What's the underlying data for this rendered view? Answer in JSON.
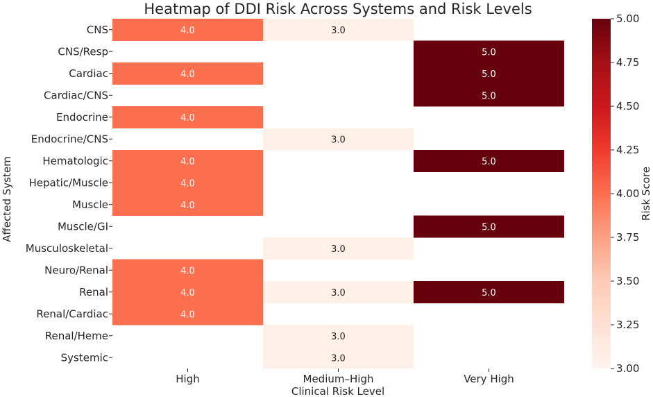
{
  "chart_data": {
    "type": "heatmap",
    "title": "Heatmap of DDI Risk Across Systems and Risk Levels",
    "xlabel": "Clinical Risk Level",
    "ylabel": "Affected System",
    "x_categories": [
      "High",
      "Medium–High",
      "Very High"
    ],
    "y_categories": [
      "CNS",
      "CNS/Resp",
      "Cardiac",
      "Cardiac/CNS",
      "Endocrine",
      "Endocrine/CNS",
      "Hematologic",
      "Hepatic/Muscle",
      "Muscle",
      "Muscle/GI",
      "Musculoskeletal",
      "Neuro/Renal",
      "Renal",
      "Renal/Cardiac",
      "Renal/Heme",
      "Systemic"
    ],
    "values": [
      [
        4.0,
        3.0,
        null
      ],
      [
        null,
        null,
        5.0
      ],
      [
        4.0,
        null,
        5.0
      ],
      [
        null,
        null,
        5.0
      ],
      [
        4.0,
        null,
        null
      ],
      [
        null,
        3.0,
        null
      ],
      [
        4.0,
        null,
        5.0
      ],
      [
        4.0,
        null,
        null
      ],
      [
        4.0,
        null,
        null
      ],
      [
        null,
        null,
        5.0
      ],
      [
        null,
        3.0,
        null
      ],
      [
        4.0,
        null,
        null
      ],
      [
        4.0,
        3.0,
        5.0
      ],
      [
        4.0,
        null,
        null
      ],
      [
        null,
        3.0,
        null
      ],
      [
        null,
        3.0,
        null
      ]
    ],
    "cell_labels": [
      [
        "4.0",
        "3.0",
        ""
      ],
      [
        "",
        "",
        "5.0"
      ],
      [
        "4.0",
        "",
        "5.0"
      ],
      [
        "",
        "",
        "5.0"
      ],
      [
        "4.0",
        "",
        ""
      ],
      [
        "",
        "3.0",
        ""
      ],
      [
        "4.0",
        "",
        "5.0"
      ],
      [
        "4.0",
        "",
        ""
      ],
      [
        "4.0",
        "",
        ""
      ],
      [
        "",
        "",
        "5.0"
      ],
      [
        "",
        "3.0",
        ""
      ],
      [
        "4.0",
        "",
        ""
      ],
      [
        "4.0",
        "3.0",
        "5.0"
      ],
      [
        "4.0",
        "",
        ""
      ],
      [
        "",
        "3.0",
        ""
      ],
      [
        "",
        "3.0",
        ""
      ]
    ],
    "colorbar": {
      "label": "Risk Score",
      "range": [
        3.0,
        5.0
      ],
      "ticks": [
        "3.00",
        "3.25",
        "3.50",
        "3.75",
        "4.00",
        "4.25",
        "4.50",
        "4.75",
        "5.00"
      ]
    },
    "colors": {
      "v3": "#fff0e8",
      "v4": "#fc6f4f",
      "v5": "#67000d"
    }
  }
}
